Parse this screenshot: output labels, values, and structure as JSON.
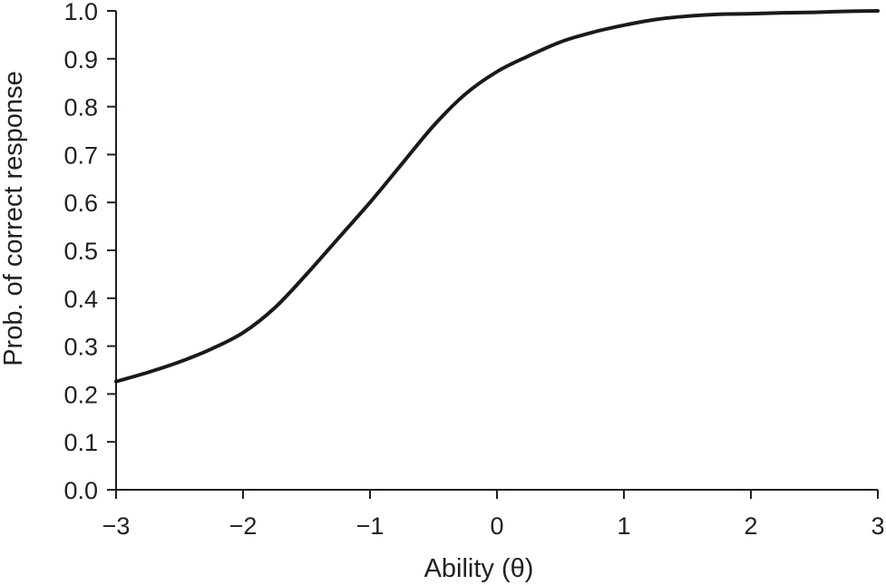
{
  "chart_data": {
    "type": "line",
    "title": "",
    "xlabel": "Ability (θ)",
    "ylabel": "Prob. of correct  response",
    "xlim": [
      -3,
      3
    ],
    "ylim": [
      0,
      1
    ],
    "x_ticks": [
      -3,
      -2,
      -1,
      0,
      1,
      2,
      3
    ],
    "x_tick_labels": [
      "−3",
      "−2",
      "−1",
      "0",
      "1",
      "2",
      "3"
    ],
    "y_ticks": [
      0,
      0.1,
      0.2,
      0.3,
      0.4,
      0.5,
      0.6,
      0.7,
      0.8,
      0.9,
      1.0
    ],
    "y_tick_labels": [
      "0.0",
      "0.1",
      "0.2",
      "0.3",
      "0.4",
      "0.5",
      "0.6",
      "0.7",
      "0.8",
      "0.9",
      "1.0"
    ],
    "grid": false,
    "legend": false,
    "series": [
      {
        "color": "#1a1a1a",
        "x": [
          -3.0,
          -2.75,
          -2.5,
          -2.25,
          -2.0,
          -1.75,
          -1.5,
          -1.25,
          -1.0,
          -0.75,
          -0.5,
          -0.25,
          0.0,
          0.25,
          0.5,
          0.75,
          1.0,
          1.25,
          1.5,
          1.75,
          2.0,
          2.25,
          2.5,
          2.75,
          3.0
        ],
        "y": [
          0.226,
          0.245,
          0.267,
          0.294,
          0.328,
          0.38,
          0.45,
          0.525,
          0.6,
          0.68,
          0.76,
          0.826,
          0.873,
          0.906,
          0.935,
          0.955,
          0.97,
          0.982,
          0.989,
          0.993,
          0.994,
          0.996,
          0.997,
          0.999,
          1.0
        ]
      }
    ]
  }
}
